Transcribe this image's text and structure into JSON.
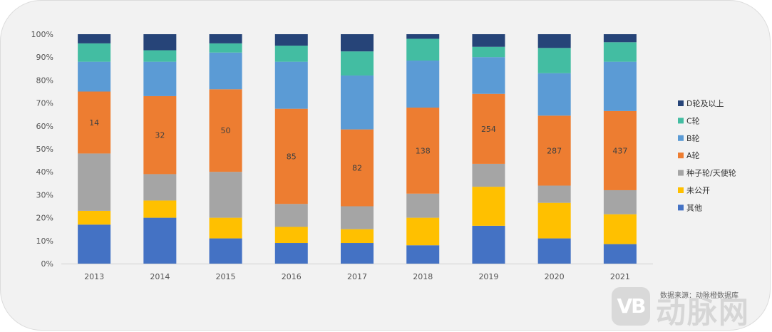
{
  "chart_data": {
    "type": "bar",
    "stacked": true,
    "normalized_percent": true,
    "categories": [
      "2013",
      "2014",
      "2015",
      "2016",
      "2017",
      "2018",
      "2019",
      "2020",
      "2021"
    ],
    "y_ticks": [
      "0%",
      "10%",
      "20%",
      "30%",
      "40%",
      "50%",
      "60%",
      "70%",
      "80%",
      "90%",
      "100%"
    ],
    "ylim": [
      0,
      100
    ],
    "legend_position": "right",
    "series": [
      {
        "name": "其他",
        "color": "#4472c4",
        "values": [
          17,
          20,
          11,
          9,
          9,
          8,
          16.5,
          11,
          8.5
        ]
      },
      {
        "name": "未公开",
        "color": "#ffc000",
        "values": [
          6,
          7.5,
          9,
          7,
          6,
          12,
          17,
          15.5,
          13
        ]
      },
      {
        "name": "种子轮/天使轮",
        "color": "#a5a5a5",
        "values": [
          25,
          11.5,
          20,
          10,
          10,
          10.5,
          10,
          7.5,
          10.5
        ]
      },
      {
        "name": "A轮",
        "color": "#ed7d31",
        "values": [
          27,
          34,
          36,
          41.5,
          33.5,
          37.5,
          30.5,
          30.5,
          34.5
        ]
      },
      {
        "name": "B轮",
        "color": "#5b9bd5",
        "values": [
          13,
          15,
          16,
          20.5,
          23.5,
          20.5,
          16,
          18.5,
          21.5
        ]
      },
      {
        "name": "C轮",
        "color": "#43bda2",
        "values": [
          8,
          5,
          4,
          7,
          10.5,
          9.5,
          4.5,
          11,
          8.5
        ]
      },
      {
        "name": "D轮及以上",
        "color": "#264478",
        "values": [
          4,
          7,
          4,
          5,
          7.5,
          2,
          5.5,
          6,
          3.5
        ]
      }
    ],
    "data_labels": {
      "series": "A轮",
      "values": [
        "14",
        "32",
        "50",
        "85",
        "82",
        "138",
        "254",
        "287",
        "437"
      ]
    },
    "source_note": "数据来源：动脉橙数据库",
    "watermark": {
      "badge": "VB",
      "text": "动脉网"
    }
  }
}
